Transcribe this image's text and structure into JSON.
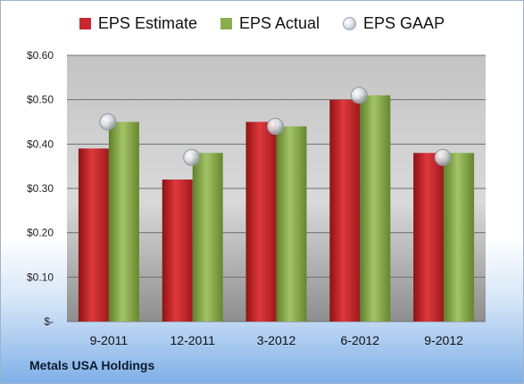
{
  "chart_data": {
    "type": "bar",
    "categories": [
      "9-2011",
      "12-2011",
      "3-2012",
      "6-2012",
      "9-2012"
    ],
    "series": [
      {
        "name": "EPS Estimate",
        "values": [
          0.39,
          0.32,
          0.45,
          0.5,
          0.38
        ],
        "color": "#c8282d"
      },
      {
        "name": "EPS Actual",
        "values": [
          0.45,
          0.38,
          0.44,
          0.51,
          0.38
        ],
        "color": "#8cad4f"
      },
      {
        "name": "EPS GAAP",
        "values": [
          0.45,
          0.37,
          0.44,
          0.51,
          0.37
        ],
        "color": "#c9ced4"
      }
    ],
    "ylim": [
      0,
      0.6
    ],
    "yticks": [
      "$-",
      "$0.10",
      "$0.20",
      "$0.30",
      "$0.40",
      "$0.50",
      "$0.60"
    ],
    "grid": true,
    "legend_position": "top"
  },
  "company_label": "Metals USA Holdings"
}
